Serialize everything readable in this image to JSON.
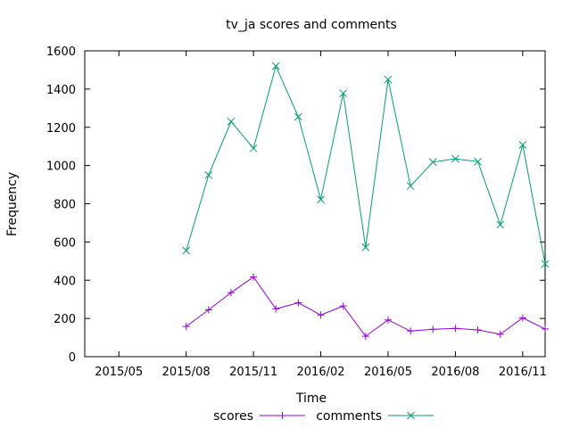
{
  "chart_data": {
    "type": "line",
    "title": "tv_ja scores and comments",
    "xlabel": "Time",
    "ylabel": "Frequency",
    "ylim": [
      0,
      1600
    ],
    "y_ticks": [
      0,
      200,
      400,
      600,
      800,
      1000,
      1200,
      1400,
      1600
    ],
    "x_ticks": [
      "2015/05",
      "2015/08",
      "2015/11",
      "2016/02",
      "2016/05",
      "2016/08",
      "2016/11"
    ],
    "x": [
      "2015/08",
      "2015/09",
      "2015/10",
      "2015/11",
      "2015/12",
      "2016/01",
      "2016/02",
      "2016/03",
      "2016/04",
      "2016/05",
      "2016/06",
      "2016/07",
      "2016/08",
      "2016/09",
      "2016/10",
      "2016/11",
      "2016/12"
    ],
    "series": [
      {
        "name": "scores",
        "color": "#9400d3",
        "marker": "plus",
        "values": [
          158,
          245,
          335,
          417,
          250,
          282,
          218,
          265,
          107,
          192,
          134,
          143,
          148,
          140,
          117,
          203,
          145
        ]
      },
      {
        "name": "comments",
        "color": "#009e73",
        "marker": "cross",
        "values": [
          555,
          950,
          1230,
          1090,
          1520,
          1255,
          822,
          1378,
          572,
          1450,
          893,
          1018,
          1035,
          1020,
          690,
          1108,
          485
        ]
      }
    ],
    "grid": false,
    "legend_position": "bottom-center"
  }
}
